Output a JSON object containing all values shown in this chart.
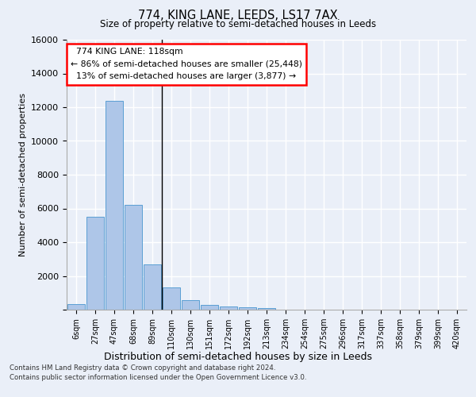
{
  "title1": "774, KING LANE, LEEDS, LS17 7AX",
  "title2": "Size of property relative to semi-detached houses in Leeds",
  "xlabel": "Distribution of semi-detached houses by size in Leeds",
  "ylabel": "Number of semi-detached properties",
  "categories": [
    "6sqm",
    "27sqm",
    "47sqm",
    "68sqm",
    "89sqm",
    "110sqm",
    "130sqm",
    "151sqm",
    "172sqm",
    "192sqm",
    "213sqm",
    "234sqm",
    "254sqm",
    "275sqm",
    "296sqm",
    "317sqm",
    "337sqm",
    "358sqm",
    "379sqm",
    "399sqm",
    "420sqm"
  ],
  "values": [
    320,
    5500,
    12400,
    6200,
    2700,
    1300,
    560,
    290,
    210,
    140,
    100,
    0,
    0,
    0,
    0,
    0,
    0,
    0,
    0,
    0,
    0
  ],
  "bar_color": "#aec6e8",
  "bar_edgecolor": "#5a9fd4",
  "property_label": "774 KING LANE: 118sqm",
  "pct_smaller": 86,
  "count_smaller": "25,448",
  "pct_larger": 13,
  "count_larger": "3,877",
  "vline_x": 4.5,
  "ylim": [
    0,
    16000
  ],
  "yticks": [
    0,
    2000,
    4000,
    6000,
    8000,
    10000,
    12000,
    14000,
    16000
  ],
  "bg_color": "#eaeff8",
  "plot_bg_color": "#eaeff8",
  "grid_color": "#ffffff",
  "footer_line1": "Contains HM Land Registry data © Crown copyright and database right 2024.",
  "footer_line2": "Contains public sector information licensed under the Open Government Licence v3.0."
}
